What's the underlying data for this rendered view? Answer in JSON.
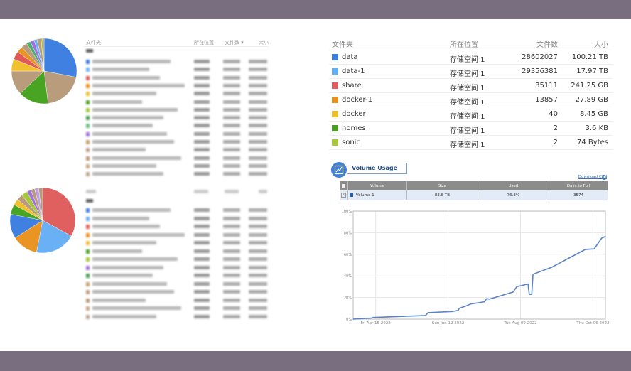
{
  "left_table": {
    "headers": [
      "文件夹",
      "所在位置",
      "文件数 ▾",
      "大小"
    ],
    "row_colors_1": [
      "#3b7ddd",
      "#6ab0f5",
      "#e05c5c",
      "#e8901e",
      "#f0c030",
      "#4a9e26",
      "#a6c93a",
      "#46a050",
      "#6cc08a",
      "#a070e0",
      "#c8a070",
      "#c0a080",
      "#b89878",
      "#c8a888",
      "#c0a890"
    ],
    "row_colors_2": [
      "#3b7ddd",
      "#6ab0f5",
      "#e05c5c",
      "#e8901e",
      "#f0c030",
      "#4a9e26",
      "#a6c93a",
      "#a070e0",
      "#46a050",
      "#c8a070",
      "#c0a080",
      "#b89878",
      "#c8a888",
      "#c0a890"
    ]
  },
  "pie1": {
    "colors": [
      "#3f80e0",
      "#b89c7c",
      "#4aa424",
      "#b89c7c",
      "#f2c02c",
      "#e05858",
      "#ea9424",
      "#b89c7c",
      "#4ab070",
      "#a070e0",
      "#6ab0f5",
      "#b89c7c",
      "#a6c93a",
      "#b89c7c"
    ],
    "values": [
      28,
      20,
      15,
      12,
      6,
      4,
      3,
      3,
      2,
      2,
      1.5,
      2,
      0.8,
      0.7
    ]
  },
  "pie2": {
    "colors": [
      "#e06060",
      "#6ab0f5",
      "#ea9424",
      "#3f80e0",
      "#4aa424",
      "#f2c02c",
      "#b89c7c",
      "#a6c93a",
      "#a070e0",
      "#b89c7c",
      "#c0a0e0",
      "#b89c7c"
    ],
    "values": [
      33,
      20,
      13,
      12,
      5,
      3,
      3,
      3,
      2,
      2,
      2,
      2
    ]
  },
  "folders": {
    "headers": {
      "name": "文件夹",
      "location": "所在位置",
      "count": "文件数",
      "size": "大小"
    },
    "rows": [
      {
        "name": "data",
        "location": "存储空间 1",
        "count": "28602027",
        "size": "100.21 TB",
        "color": "#3b7ddd"
      },
      {
        "name": "data-1",
        "location": "存储空间 1",
        "count": "29356381",
        "size": "17.97 TB",
        "color": "#62aef2"
      },
      {
        "name": "share",
        "location": "存储空间 1",
        "count": "35111",
        "size": "241.25 GB",
        "color": "#e05c5c"
      },
      {
        "name": "docker-1",
        "location": "存储空间 1",
        "count": "13857",
        "size": "27.89 GB",
        "color": "#e8901e"
      },
      {
        "name": "docker",
        "location": "存储空间 1",
        "count": "40",
        "size": "8.45 GB",
        "color": "#f0be2c"
      },
      {
        "name": "homes",
        "location": "存储空间 1",
        "count": "2",
        "size": "3.6 KB",
        "color": "#4a9e26"
      },
      {
        "name": "sonic",
        "location": "存储空间 1",
        "count": "2",
        "size": "74 Bytes",
        "color": "#a6c93a"
      }
    ]
  },
  "volume_usage": {
    "title": "Volume Usage",
    "download": "Download CSV",
    "headers": [
      "Volume",
      "Size",
      "Used",
      "Days to Full"
    ],
    "row": {
      "volume": "Volume 1",
      "size": "83.8 TB",
      "used": "76.3%",
      "days": "3574",
      "color": "#2a5db0"
    }
  },
  "chart_data": {
    "type": "line",
    "title": "",
    "xlabel": "",
    "ylabel": "",
    "ylim": [
      0,
      100
    ],
    "yticks": [
      "0%",
      "20%",
      "40%",
      "60%",
      "80%",
      "100%"
    ],
    "xlim": [
      "2022-03-28",
      "2022-10-16"
    ],
    "xticks": [
      {
        "date": "2022-04-15",
        "label": "Fri Apr 15 2022"
      },
      {
        "date": "2022-06-12",
        "label": "Sun Jun 12 2022"
      },
      {
        "date": "2022-08-09",
        "label": "Tue Aug 09 2022"
      },
      {
        "date": "2022-10-06",
        "label": "Thu Oct 06 2022"
      }
    ],
    "grid": true,
    "color": "#5b84c8",
    "series": [
      {
        "x": [
          "2022-03-28",
          "2022-04-12",
          "2022-04-13",
          "2022-05-25",
          "2022-05-27",
          "2022-06-15",
          "2022-06-20",
          "2022-06-21",
          "2022-06-26",
          "2022-06-30",
          "2022-07-11",
          "2022-07-13",
          "2022-07-15",
          "2022-08-03",
          "2022-08-06",
          "2022-08-15",
          "2022-08-16",
          "2022-08-18",
          "2022-08-19",
          "2022-09-03",
          "2022-09-16",
          "2022-09-30",
          "2022-10-07",
          "2022-10-13",
          "2022-10-16"
        ],
        "y": [
          0,
          1,
          1.5,
          3.3,
          6,
          7,
          8,
          10,
          12,
          14,
          16,
          19,
          18.5,
          25,
          30,
          32.5,
          23,
          23,
          41.5,
          48,
          56,
          64.5,
          65,
          75,
          76.5
        ]
      }
    ]
  }
}
